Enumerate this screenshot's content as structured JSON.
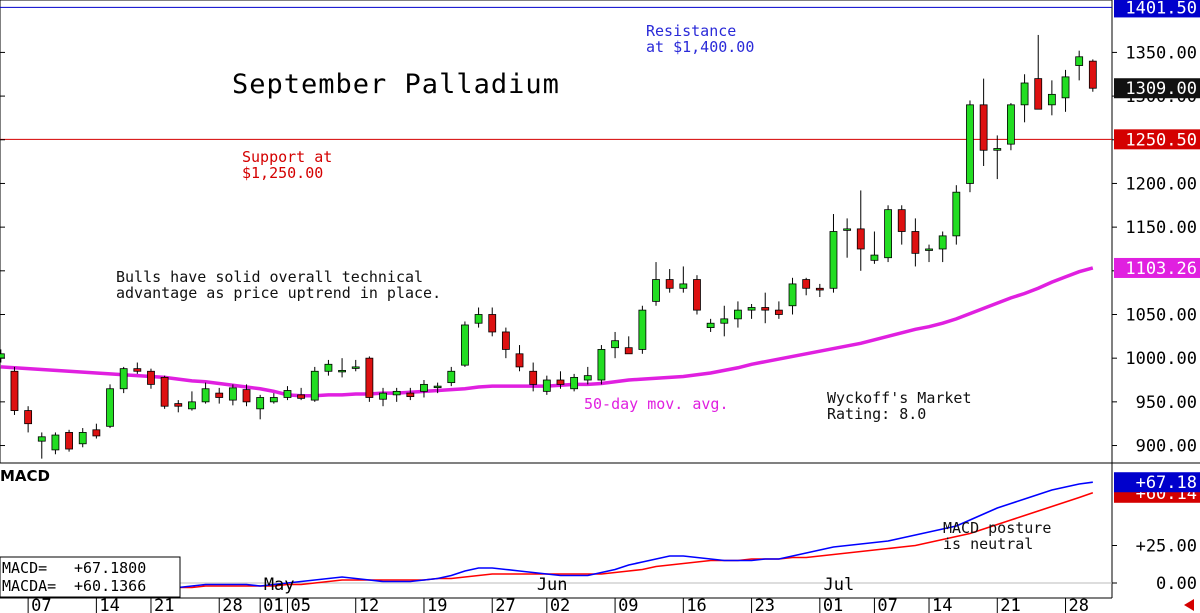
{
  "chart_data": [
    {
      "type": "candlestick",
      "title": "September Palladium",
      "ylim": [
        880,
        1410
      ],
      "y_ticks": [
        "1350.00",
        "1300.00",
        "1250.00",
        "1200.00",
        "1150.00",
        "1100.00",
        "1050.00",
        "1000.00",
        "950.00",
        "900.00"
      ],
      "y_tick_values": [
        1350,
        1300,
        1250,
        1200,
        1150,
        1100,
        1050,
        1000,
        950,
        900
      ],
      "price_labels": [
        {
          "text": "1401.50",
          "value": 1401.5,
          "color": "#0000cc"
        },
        {
          "text": "1309.00",
          "value": 1309.0,
          "color": "#111111"
        },
        {
          "text": "1250.50",
          "value": 1250.5,
          "color": "#d40000"
        },
        {
          "text": "1103.26",
          "value": 1103.26,
          "color": "#e020e0"
        }
      ],
      "horizontal_lines": [
        {
          "value": 1401.5,
          "color": "#0000cc"
        },
        {
          "value": 1250.5,
          "color": "#d40000"
        }
      ],
      "annotations": [
        {
          "id": "resistance",
          "lines": [
            "Resistance",
            "at $1,400.00"
          ],
          "color": "#2a2ad8"
        },
        {
          "id": "support",
          "lines": [
            "Support at",
            "$1,250.00"
          ],
          "color": "#d40000"
        },
        {
          "id": "bulls",
          "lines": [
            "Bulls have solid overall technical",
            "advantage as price uptrend in place."
          ],
          "color": "#111111"
        },
        {
          "id": "mavg",
          "lines": [
            "50-day mov. avg."
          ],
          "color": "#e020e0"
        },
        {
          "id": "wyckoff",
          "lines": [
            "Wyckoff's Market",
            "Rating: 8.0"
          ],
          "color": "#111111"
        }
      ],
      "series": [
        {
          "kind": "ohlc",
          "candles": [
            [
              1000,
              1010,
              995,
              1005
            ],
            [
              985,
              990,
              935,
              940
            ],
            [
              940,
              945,
              915,
              925
            ],
            [
              905,
              915,
              885,
              910
            ],
            [
              895,
              915,
              890,
              912
            ],
            [
              915,
              918,
              893,
              896
            ],
            [
              902,
              920,
              898,
              915
            ],
            [
              918,
              925,
              908,
              911
            ],
            [
              922,
              970,
              920,
              965
            ],
            [
              965,
              990,
              960,
              988
            ],
            [
              988,
              995,
              982,
              985
            ],
            [
              985,
              988,
              965,
              970
            ],
            [
              978,
              980,
              942,
              945
            ],
            [
              948,
              952,
              938,
              945
            ],
            [
              942,
              962,
              940,
              950
            ],
            [
              950,
              972,
              948,
              965
            ],
            [
              960,
              966,
              948,
              955
            ],
            [
              952,
              970,
              946,
              966
            ],
            [
              964,
              970,
              945,
              950
            ],
            [
              942,
              958,
              930,
              955
            ],
            [
              950,
              960,
              948,
              955
            ],
            [
              955,
              968,
              952,
              963
            ],
            [
              958,
              966,
              952,
              954
            ],
            [
              952,
              990,
              950,
              985
            ],
            [
              985,
              998,
              980,
              993
            ],
            [
              986,
              1000,
              978,
              986
            ],
            [
              990,
              998,
              985,
              990
            ],
            [
              1000,
              1002,
              950,
              955
            ],
            [
              953,
              966,
              945,
              960
            ],
            [
              958,
              966,
              950,
              962
            ],
            [
              960,
              966,
              952,
              956
            ],
            [
              962,
              975,
              955,
              970
            ],
            [
              968,
              972,
              960,
              968
            ],
            [
              972,
              990,
              968,
              985
            ],
            [
              992,
              1042,
              990,
              1038
            ],
            [
              1040,
              1058,
              1035,
              1050
            ],
            [
              1050,
              1058,
              1025,
              1030
            ],
            [
              1030,
              1035,
              1000,
              1010
            ],
            [
              1005,
              1015,
              985,
              990
            ],
            [
              985,
              995,
              962,
              970
            ],
            [
              962,
              980,
              958,
              975
            ],
            [
              975,
              985,
              965,
              970
            ],
            [
              965,
              982,
              962,
              978
            ],
            [
              975,
              990,
              970,
              980
            ],
            [
              975,
              1015,
              970,
              1010
            ],
            [
              1012,
              1030,
              1000,
              1020
            ],
            [
              1012,
              1025,
              1005,
              1005
            ],
            [
              1010,
              1060,
              1005,
              1055
            ],
            [
              1065,
              1110,
              1060,
              1090
            ],
            [
              1090,
              1102,
              1075,
              1080
            ],
            [
              1080,
              1105,
              1075,
              1085
            ],
            [
              1090,
              1095,
              1050,
              1055
            ],
            [
              1035,
              1045,
              1030,
              1040
            ],
            [
              1040,
              1060,
              1025,
              1045
            ],
            [
              1045,
              1065,
              1035,
              1055
            ],
            [
              1055,
              1062,
              1045,
              1058
            ],
            [
              1058,
              1075,
              1040,
              1055
            ],
            [
              1055,
              1065,
              1045,
              1050
            ],
            [
              1060,
              1092,
              1050,
              1085
            ],
            [
              1090,
              1092,
              1072,
              1080
            ],
            [
              1080,
              1085,
              1070,
              1078
            ],
            [
              1080,
              1165,
              1075,
              1145
            ],
            [
              1148,
              1160,
              1115,
              1148
            ],
            [
              1148,
              1192,
              1100,
              1125
            ],
            [
              1112,
              1145,
              1108,
              1118
            ],
            [
              1115,
              1175,
              1110,
              1170
            ],
            [
              1170,
              1175,
              1130,
              1145
            ],
            [
              1145,
              1160,
              1105,
              1120
            ],
            [
              1125,
              1130,
              1110,
              1125
            ],
            [
              1125,
              1145,
              1110,
              1140
            ],
            [
              1140,
              1198,
              1130,
              1190
            ],
            [
              1200,
              1295,
              1190,
              1290
            ],
            [
              1290,
              1320,
              1220,
              1238
            ],
            [
              1238,
              1255,
              1205,
              1240
            ],
            [
              1245,
              1292,
              1238,
              1290
            ],
            [
              1290,
              1325,
              1270,
              1315
            ],
            [
              1320,
              1370,
              1285,
              1285
            ],
            [
              1290,
              1318,
              1278,
              1302
            ],
            [
              1298,
              1330,
              1282,
              1322
            ],
            [
              1335,
              1352,
              1318,
              1345
            ],
            [
              1340,
              1342,
              1305,
              1309
            ]
          ]
        },
        {
          "name": "50-day mov. avg.",
          "kind": "line",
          "color": "#e020e0",
          "values": [
            990,
            989,
            988,
            987,
            986,
            985,
            984,
            983,
            982,
            981,
            980,
            979,
            978,
            976,
            974,
            973,
            971,
            969,
            967,
            965,
            962,
            958,
            957,
            957,
            958,
            958,
            959,
            959,
            960,
            960,
            961,
            962,
            963,
            964,
            965,
            967,
            968,
            968,
            968,
            968,
            968,
            969,
            970,
            970,
            971,
            973,
            975,
            976,
            977,
            978,
            979,
            981,
            983,
            986,
            989,
            993,
            996,
            999,
            1002,
            1005,
            1008,
            1011,
            1014,
            1017,
            1021,
            1025,
            1029,
            1033,
            1036,
            1040,
            1045,
            1051,
            1057,
            1063,
            1069,
            1074,
            1080,
            1087,
            1093,
            1099,
            1103.26
          ]
        }
      ],
      "x_labels": [
        {
          "text": "07",
          "index": 2
        },
        {
          "text": "14",
          "index": 7
        },
        {
          "text": "21",
          "index": 11
        },
        {
          "text": "28",
          "index": 16
        },
        {
          "text": "01",
          "index": 19
        },
        {
          "text": "05",
          "index": 21
        },
        {
          "text": "12",
          "index": 26
        },
        {
          "text": "19",
          "index": 31
        },
        {
          "text": "27",
          "index": 36
        },
        {
          "text": "02",
          "index": 40
        },
        {
          "text": "09",
          "index": 45
        },
        {
          "text": "16",
          "index": 50
        },
        {
          "text": "23",
          "index": 55
        },
        {
          "text": "01",
          "index": 60
        },
        {
          "text": "07",
          "index": 64
        },
        {
          "text": "14",
          "index": 68
        },
        {
          "text": "21",
          "index": 73
        },
        {
          "text": "28",
          "index": 78
        }
      ],
      "months": [
        {
          "text": "May",
          "index": 20
        },
        {
          "text": "Jun",
          "index": 40
        },
        {
          "text": "Jul",
          "index": 61
        }
      ]
    },
    {
      "type": "line",
      "title": "MACD",
      "ylim": [
        -10,
        80
      ],
      "y_ticks": [
        "+25.00",
        "0.00"
      ],
      "y_tick_values": [
        25,
        0
      ],
      "price_labels": [
        {
          "text": "+67.18",
          "value": 67.18,
          "color": "#0000cc"
        },
        {
          "text": "+60.14",
          "value": 60.14,
          "color": "#d40000"
        }
      ],
      "annotation": [
        "MACD posture",
        "is neutral"
      ],
      "readout": [
        {
          "label": "MACD=",
          "value": "+67.1800"
        },
        {
          "label": "MACDA=",
          "value": "+60.1366"
        }
      ],
      "series": [
        {
          "name": "MACD",
          "color": "#0000ff",
          "values": [
            -5,
            -5,
            -4,
            -4,
            -5,
            -6,
            -6,
            -5,
            -4,
            -3,
            -2,
            -2,
            -2,
            -3,
            -2,
            -1,
            -1,
            -1,
            -1,
            -2,
            -1,
            0,
            1,
            2,
            3,
            4,
            3,
            2,
            1,
            1,
            1,
            2,
            3,
            5,
            8,
            10,
            10,
            9,
            8,
            7,
            6,
            5,
            5,
            5,
            7,
            9,
            12,
            14,
            16,
            18,
            18,
            17,
            16,
            15,
            15,
            15,
            16,
            16,
            18,
            20,
            22,
            24,
            25,
            26,
            27,
            28,
            30,
            32,
            34,
            36,
            38,
            42,
            46,
            50,
            53,
            56,
            59,
            62,
            64,
            66,
            67.18
          ]
        },
        {
          "name": "MACDA",
          "color": "#ff0000",
          "values": [
            -7,
            -7,
            -7,
            -6,
            -6,
            -6,
            -6,
            -6,
            -5,
            -5,
            -4,
            -4,
            -3,
            -3,
            -3,
            -2,
            -2,
            -2,
            -2,
            -2,
            -2,
            -1,
            -1,
            0,
            1,
            2,
            2,
            2,
            2,
            2,
            2,
            2,
            3,
            3,
            4,
            5,
            6,
            6,
            6,
            6,
            6,
            6,
            6,
            6,
            6,
            7,
            8,
            9,
            11,
            12,
            13,
            14,
            15,
            15,
            15,
            16,
            16,
            16,
            17,
            17,
            18,
            19,
            20,
            21,
            22,
            23,
            24,
            25,
            27,
            29,
            31,
            33,
            36,
            39,
            42,
            45,
            48,
            51,
            54,
            57,
            60.14
          ]
        }
      ]
    }
  ]
}
